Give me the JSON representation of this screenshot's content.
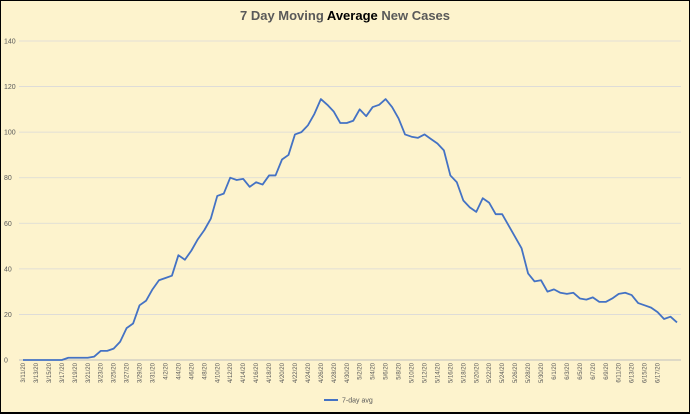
{
  "chart_data": {
    "type": "line",
    "title": "7 Day Moving Average New Cases",
    "title_parts": [
      {
        "text": "7 Day Moving ",
        "highlight": false
      },
      {
        "text": "Average",
        "highlight": true
      },
      {
        "text": " New Cases",
        "highlight": false
      }
    ],
    "xlabel": "",
    "ylabel": "",
    "ylim": [
      0,
      140
    ],
    "yticks": [
      0,
      20,
      40,
      60,
      80,
      100,
      120,
      140
    ],
    "grid": "horizontal",
    "legend_position": "bottom",
    "colors": {
      "background": "#fdf3cd",
      "line": "#4472c4",
      "grid": "#d9d9d9"
    },
    "x_tick_labels": [
      "3/11/20",
      "3/13/20",
      "3/15/20",
      "3/17/20",
      "3/19/20",
      "3/21/20",
      "3/23/20",
      "3/25/20",
      "3/27/20",
      "3/29/20",
      "3/31/20",
      "4/2/20",
      "4/4/20",
      "4/6/20",
      "4/8/20",
      "4/10/20",
      "4/12/20",
      "4/14/20",
      "4/16/20",
      "4/18/20",
      "4/20/20",
      "4/22/20",
      "4/24/20",
      "4/26/20",
      "4/28/20",
      "4/30/20",
      "5/2/20",
      "5/4/20",
      "5/6/20",
      "5/8/20",
      "5/10/20",
      "5/12/20",
      "5/14/20",
      "5/16/20",
      "5/18/20",
      "5/20/20",
      "5/22/20",
      "5/24/20",
      "5/26/20",
      "5/28/20",
      "5/30/20",
      "6/1/20",
      "6/3/20",
      "6/5/20",
      "6/7/20",
      "6/9/20",
      "6/11/20",
      "6/13/20",
      "6/15/20",
      "6/17/20"
    ],
    "series": [
      {
        "name": "7-day avg",
        "values": [
          0,
          0,
          0,
          0,
          0,
          0,
          0,
          1,
          1,
          1,
          1,
          1.5,
          4,
          4,
          5,
          8,
          14,
          16,
          24,
          26,
          31,
          35,
          36,
          37,
          46,
          44,
          48,
          53,
          57,
          62,
          72,
          73,
          80,
          79,
          79.5,
          76,
          78,
          77,
          81,
          81,
          88,
          90,
          99,
          100,
          103,
          108,
          114.5,
          112,
          109,
          104,
          104,
          105,
          110,
          107,
          111,
          112,
          114.5,
          111,
          106,
          99,
          98,
          97.5,
          99,
          97,
          95,
          92,
          81,
          78,
          70,
          67,
          65,
          71,
          69,
          64,
          64,
          59,
          54,
          49,
          38,
          34.5,
          35,
          30,
          31,
          29.5,
          29,
          29.5,
          27,
          26.5,
          27.5,
          25.5,
          25.5,
          27,
          29,
          29.5,
          28.5,
          25,
          24,
          23,
          21,
          18,
          19,
          16.5
        ]
      }
    ]
  }
}
